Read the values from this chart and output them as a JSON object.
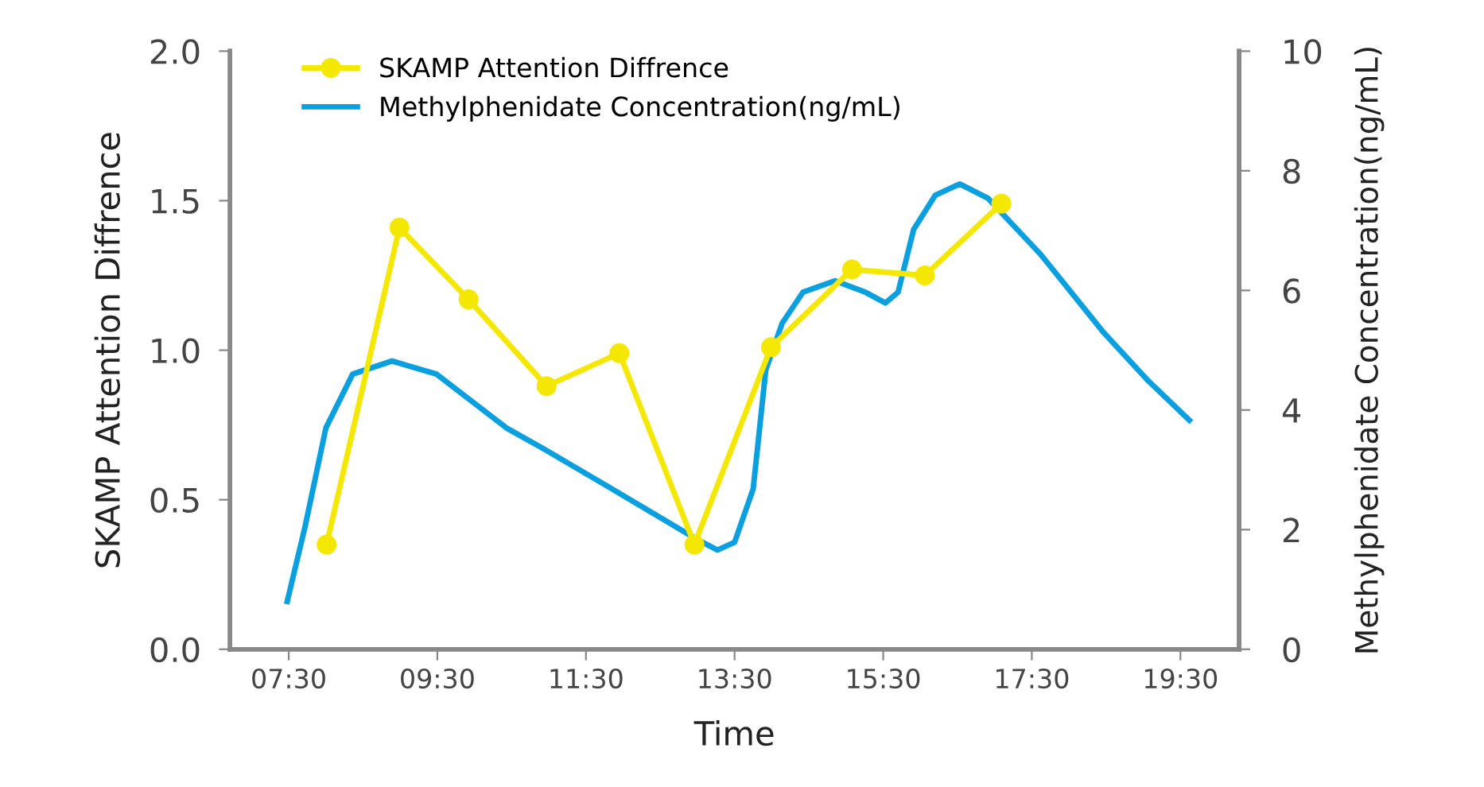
{
  "chart_data": {
    "type": "line",
    "xlabel": "Time",
    "ylabel": "SKAMP Attention Diffrence",
    "y2label": "Methylphenidate Concentration(ng/mL)",
    "xlim": [
      6.71,
      20.29
    ],
    "xticks": [
      {
        "value": 7.5,
        "label": "07:30"
      },
      {
        "value": 9.5,
        "label": "09:30"
      },
      {
        "value": 11.5,
        "label": "11:30"
      },
      {
        "value": 13.5,
        "label": "13:30"
      },
      {
        "value": 15.5,
        "label": "15:30"
      },
      {
        "value": 17.5,
        "label": "17:30"
      },
      {
        "value": 19.5,
        "label": "19:30"
      }
    ],
    "ylim": [
      0,
      2
    ],
    "yticks": [
      {
        "value": 0,
        "label": "0.0"
      },
      {
        "value": 0.5,
        "label": "0.5"
      },
      {
        "value": 1,
        "label": "1.0"
      },
      {
        "value": 1.5,
        "label": "1.5"
      },
      {
        "value": 2,
        "label": "2.0"
      }
    ],
    "y2lim": [
      0,
      10
    ],
    "y2ticks": [
      0,
      2,
      4,
      6,
      8,
      10
    ],
    "grid": false,
    "legend": "top left",
    "series": [
      {
        "name": "SKAMP Attention Diffrence",
        "color": "#f5e800",
        "marker": "circle",
        "x": [
          8.01,
          8.99,
          9.92,
          10.97,
          11.95,
          12.96,
          13.99,
          15.08,
          16.06,
          17.09
        ],
        "values": [
          0.35,
          1.41,
          1.17,
          0.88,
          0.99,
          0.35,
          1.01,
          1.27,
          1.25,
          1.49
        ]
      },
      {
        "name": "Methylphenidate Concentration(ng/mL)",
        "color": "#0aa0e0",
        "marker": "none",
        "axis": "y2",
        "x": [
          7.48,
          7.72,
          8.0,
          8.36,
          8.89,
          9.49,
          10.43,
          10.92,
          11.99,
          12.99,
          13.27,
          13.5,
          13.75,
          13.92,
          14.14,
          14.42,
          14.85,
          15.26,
          15.53,
          15.7,
          15.91,
          16.2,
          16.53,
          16.91,
          17.62,
          18.47,
          19.05,
          19.62
        ],
        "values": [
          0.8,
          2.05,
          3.7,
          4.6,
          4.82,
          4.6,
          3.7,
          3.36,
          2.58,
          1.84,
          1.66,
          1.79,
          2.68,
          4.67,
          5.45,
          5.97,
          6.16,
          5.97,
          5.79,
          5.97,
          7.02,
          7.59,
          7.78,
          7.54,
          6.6,
          5.29,
          4.51,
          3.83
        ]
      }
    ]
  }
}
